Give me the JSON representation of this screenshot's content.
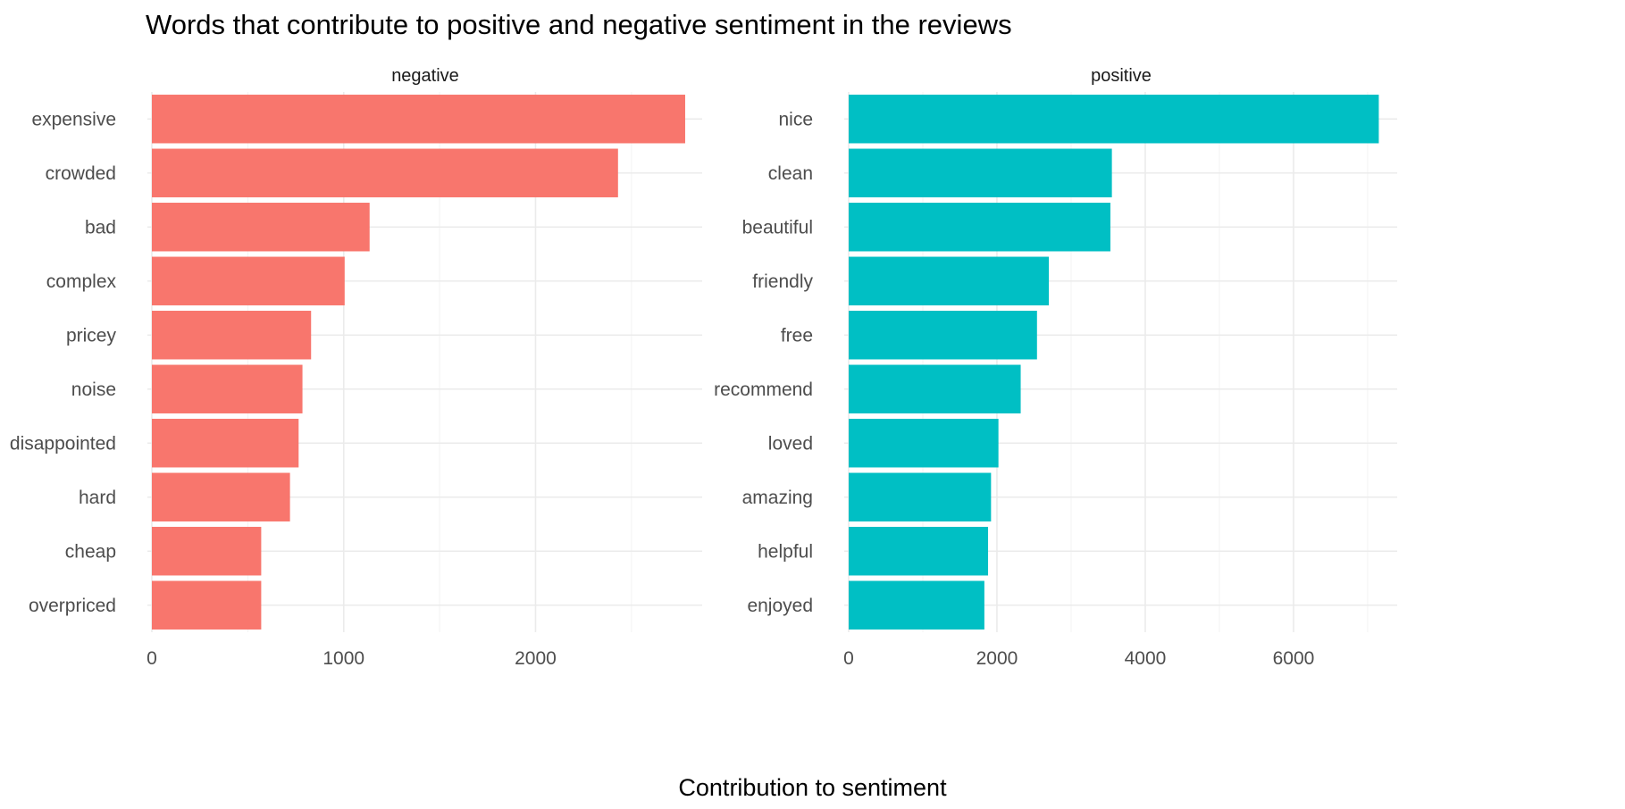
{
  "chart_data": {
    "type": "bar",
    "orientation": "horizontal",
    "title": "Words that contribute to positive and negative sentiment in the reviews",
    "xlabel": "Contribution to sentiment",
    "ylabel": "",
    "grid": true,
    "legend": "none",
    "panels": [
      {
        "name": "negative",
        "color": "#F8766D",
        "xlim": [
          0,
          2850
        ],
        "xticks": [
          0,
          1000,
          2000
        ],
        "categories": [
          "expensive",
          "crowded",
          "bad",
          "complex",
          "pricey",
          "noise",
          "disappointed",
          "hard",
          "cheap",
          "overpriced"
        ],
        "values": [
          2780,
          2430,
          1135,
          1005,
          830,
          785,
          765,
          720,
          570,
          570
        ]
      },
      {
        "name": "positive",
        "color": "#00BFC4",
        "xlim": [
          0,
          7350
        ],
        "xticks": [
          0,
          2000,
          4000,
          6000
        ],
        "categories": [
          "nice",
          "clean",
          "beautiful",
          "friendly",
          "free",
          "recommend",
          "loved",
          "amazing",
          "helpful",
          "enjoyed"
        ],
        "values": [
          7150,
          3550,
          3530,
          2700,
          2540,
          2320,
          2020,
          1920,
          1880,
          1830
        ]
      }
    ]
  }
}
